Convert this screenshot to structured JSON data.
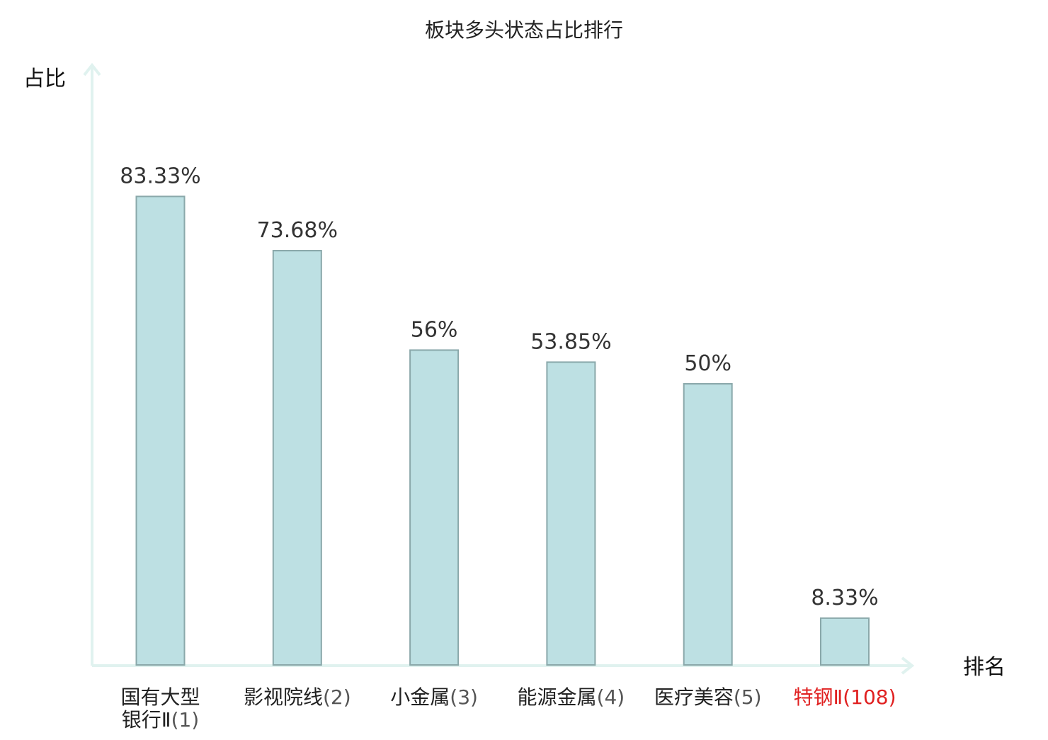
{
  "chart_data": {
    "type": "bar",
    "title": "板块多头状态占比排行",
    "xlabel": "排名",
    "ylabel": "占比",
    "ylim": [
      0,
      100
    ],
    "grid": false,
    "legend": "none",
    "categories": [
      {
        "name": "国有大型银行Ⅱ",
        "rank": "(1)",
        "highlight": false
      },
      {
        "name": "影视院线",
        "rank": "(2)",
        "highlight": false
      },
      {
        "name": "小金属",
        "rank": "(3)",
        "highlight": false
      },
      {
        "name": "能源金属",
        "rank": "(4)",
        "highlight": false
      },
      {
        "name": "医疗美容",
        "rank": "(5)",
        "highlight": false
      },
      {
        "name": "特钢Ⅱ",
        "rank": "(108)",
        "highlight": true
      }
    ],
    "values": [
      83.33,
      73.68,
      56,
      53.85,
      50,
      8.33
    ],
    "value_labels": [
      "83.33%",
      "73.68%",
      "56%",
      "53.85%",
      "50%",
      "8.33%"
    ],
    "colors": {
      "bar_fill": "#bde0e3",
      "bar_stroke": "#8aa8aa",
      "axis": "#e0f2ef",
      "label_normal": "#222222",
      "suffix_normal": "#555555",
      "label_highlight": "#e02020"
    }
  }
}
